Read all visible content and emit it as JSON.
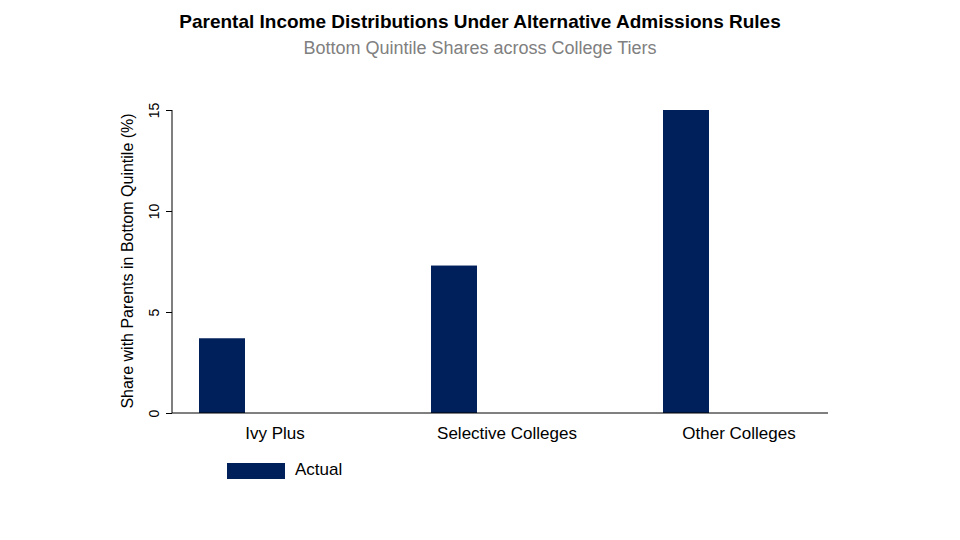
{
  "chart_data": {
    "type": "bar",
    "title": "Parental Income Distributions Under Alternative Admissions Rules",
    "subtitle": "Bottom Quintile Shares across College Tiers",
    "y_label": "Share with Parents in Bottom Quintile (%)",
    "categories": [
      "Ivy Plus",
      "Selective Colleges",
      "Other Colleges"
    ],
    "series": [
      {
        "name": "Actual",
        "color": "#00205b",
        "values": [
          3.7,
          7.3,
          15.0
        ]
      }
    ],
    "ylim": [
      0,
      15
    ],
    "yticks": [
      0,
      5,
      10,
      15
    ],
    "grid": false,
    "legend": "bottom"
  }
}
